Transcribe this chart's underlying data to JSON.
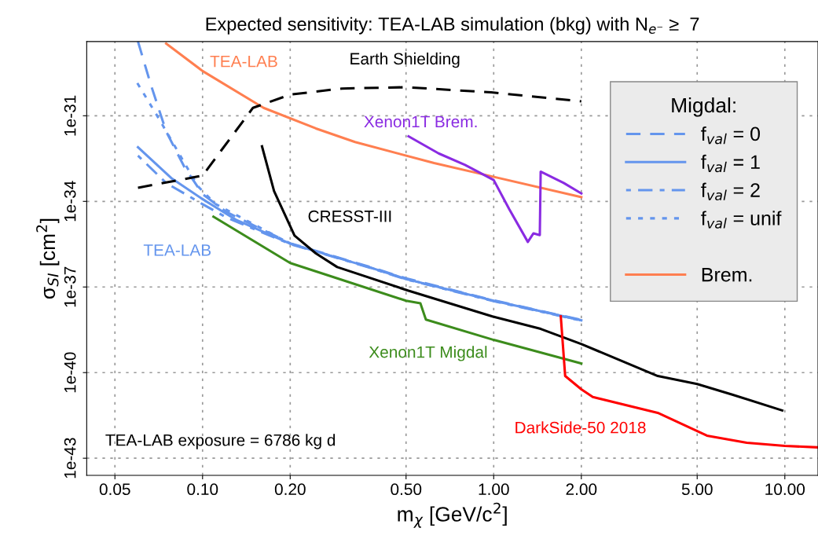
{
  "chart_data": {
    "type": "line",
    "title": "Expected sensitivity: TEA-LAB simulation (bkg) with N$_{e⁻}$ ≥  7",
    "xlabel": "m$_{χ}$ [GeV/c$^{2}$]",
    "ylabel": "σ$_{SI}$ [cm$^{2}$]",
    "log": "xy",
    "grid": true,
    "legend": "top right",
    "legend_title": "Migdal:",
    "xlim": [
      0.04,
      13
    ],
    "ylim": [
      2.5e-44,
      4e-29
    ],
    "xticks": [
      {
        "value": 0.05,
        "label": "0.05"
      },
      {
        "value": 0.1,
        "label": "0.10"
      },
      {
        "value": 0.2,
        "label": "0.20"
      },
      {
        "value": 0.5,
        "label": "0.50"
      },
      {
        "value": 1,
        "label": "1.00"
      },
      {
        "value": 2,
        "label": "2.00"
      },
      {
        "value": 5,
        "label": "5.00"
      },
      {
        "value": 10,
        "label": "10.00"
      }
    ],
    "yticks": [
      {
        "value": 1e-43,
        "label": "1e-43"
      },
      {
        "value": 1e-40,
        "label": "1e-40"
      },
      {
        "value": 1e-37,
        "label": "1e-37"
      },
      {
        "value": 1e-34,
        "label": "1e-34"
      },
      {
        "value": 1e-31,
        "label": "1e-31"
      }
    ],
    "series": [
      {
        "name": "f$_{val}$ = 0",
        "color": "#6495ed",
        "line_style": "dashed",
        "x": [
          0.06,
          0.0663,
          0.075,
          0.0866,
          0.1,
          0.121,
          0.2,
          0.372,
          0.5,
          1.0,
          2.0
        ],
        "values": [
          4e-29,
          1.3e-30,
          2.8e-32,
          1.6e-33,
          1.8e-34,
          4.2e-35,
          3.4e-36,
          5.2e-37,
          2e-37,
          3.4e-38,
          7e-39
        ]
      },
      {
        "name": "f$_{val}$ = 1",
        "color": "#6495ed",
        "line_style": "solid",
        "x": [
          0.06,
          0.0785,
          0.1,
          0.131,
          0.2,
          0.372,
          0.5,
          1.0,
          2.0
        ],
        "values": [
          7.9e-33,
          6.3e-34,
          1.2e-34,
          2.2e-35,
          3.3e-36,
          5e-37,
          1.9e-37,
          3.3e-38,
          6.8e-39
        ]
      },
      {
        "name": "f$_{val}$ = 2",
        "color": "#6495ed",
        "line_style": "dashdot",
        "x": [
          0.06,
          0.075,
          0.1,
          0.121,
          0.2,
          0.372,
          0.5,
          1.0,
          2.0
        ],
        "values": [
          4e-33,
          4.4e-34,
          8e-35,
          2.7e-35,
          3.2e-36,
          4.9e-37,
          1.85e-37,
          3.2e-38,
          6.6e-39
        ]
      },
      {
        "name": "f$_{val}$ = unif",
        "color": "#6495ed",
        "line_style": "dotted",
        "x": [
          0.0597,
          0.0706,
          0.0835,
          0.0963,
          0.111,
          0.2,
          0.372,
          0.5,
          1.0,
          2.0
        ],
        "values": [
          1.4e-30,
          8.3e-32,
          4.3e-33,
          3.4e-34,
          8e-35,
          3.3e-36,
          5e-37,
          1.9e-37,
          3.3e-38,
          6.8e-39
        ]
      },
      {
        "name": "Brem.",
        "color": "#ff7f50",
        "line_style": "solid",
        "x": [
          0.075,
          0.1,
          0.162,
          0.245,
          0.334,
          0.624,
          0.9,
          2.0
        ],
        "values": [
          3.4e-29,
          3.7e-30,
          1.9e-31,
          3.6e-32,
          1.2e-32,
          2.2e-33,
          9.3e-34,
          1.4e-34
        ]
      },
      {
        "color": "#000000",
        "line_style": "dashed",
        "x": [
          0.06,
          0.1,
          0.149,
          0.2,
          0.301,
          0.5,
          0.98,
          2.0
        ],
        "values": [
          3e-34,
          8e-34,
          1.9e-31,
          5.5e-31,
          9e-31,
          1e-30,
          6.6e-31,
          3.2e-31
        ]
      },
      {
        "color": "#8a2be2",
        "line_style": "solid",
        "x": [
          0.51,
          0.647,
          0.797,
          1.0,
          1.13,
          1.31,
          1.37,
          1.44,
          1.45,
          1.74,
          2.0
        ],
        "values": [
          1.9e-32,
          4.8e-33,
          1.9e-33,
          5.6e-34,
          5.4e-35,
          3.8e-36,
          7.6e-36,
          6.6e-36,
          1.1e-33,
          4.4e-34,
          1.9e-34
        ]
      },
      {
        "color": "#000000",
        "line_style": "solid",
        "x": [
          0.16,
          0.176,
          0.207,
          0.245,
          0.29,
          0.51,
          0.99,
          1.45,
          2.0,
          3.66,
          5.0,
          6.6,
          9.8
        ],
        "values": [
          8.5e-33,
          2.3e-34,
          6.3e-36,
          1.5e-36,
          5e-37,
          7.4e-38,
          9.3e-39,
          3.4e-39,
          1e-39,
          7.6e-41,
          4e-41,
          1.7e-41,
          4.7e-42
        ]
      },
      {
        "color": "#3c8c1c",
        "line_style": "solid",
        "x": [
          0.109,
          0.2,
          0.282,
          0.5,
          0.56,
          0.585,
          1.0,
          2.0
        ],
        "values": [
          2.9e-35,
          6.9e-37,
          2.2e-37,
          3.3e-38,
          2.7e-38,
          7.2e-39,
          1.4e-39,
          2.1e-40
        ]
      },
      {
        "color": "#ff0000",
        "line_style": "solid",
        "x": [
          1.7,
          1.76,
          2.0,
          2.19,
          3.66,
          5.4,
          7.4,
          10,
          13
        ],
        "values": [
          9.3e-39,
          7.6e-41,
          2.6e-41,
          1.4e-41,
          3.9e-42,
          6.2e-43,
          3.5e-43,
          2.7e-43,
          2.4e-43
        ]
      }
    ],
    "annotations": [
      "TEA-LAB",
      "Earth Shielding",
      "Xenon1T Brem.",
      "CRESST-III",
      "TEA-LAB",
      "Xenon1T Migdal",
      "DarkSide-50 2018",
      "TEA-LAB exposure = 6786 kg d"
    ]
  }
}
